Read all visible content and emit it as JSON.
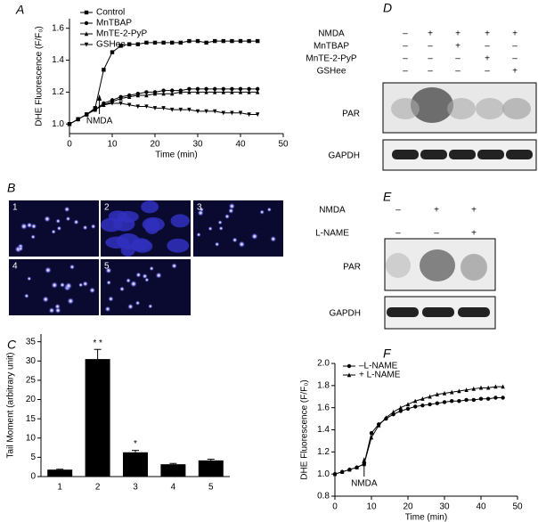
{
  "panel_labels": [
    "A",
    "B",
    "C",
    "D",
    "E",
    "F"
  ],
  "chart_data": [
    {
      "type": "line",
      "x_title": "Time (min)",
      "y_title": "DHE Fluorescence (F/F₀)",
      "annotation": "NMDA",
      "x": [
        0,
        2,
        4,
        6,
        8,
        10,
        12,
        14,
        16,
        18,
        20,
        22,
        24,
        26,
        28,
        30,
        32,
        34,
        36,
        38,
        40,
        42,
        44
      ],
      "series": [
        {
          "name": "Control",
          "color": "#000000",
          "marker": "square",
          "values": [
            1.0,
            1.03,
            1.06,
            1.1,
            1.34,
            1.45,
            1.49,
            1.5,
            1.5,
            1.51,
            1.51,
            1.51,
            1.51,
            1.51,
            1.52,
            1.52,
            1.51,
            1.52,
            1.52,
            1.52,
            1.52,
            1.52,
            1.52
          ]
        },
        {
          "name": "MnTBAP",
          "color": "#000000",
          "marker": "circle",
          "values": [
            1.0,
            1.03,
            1.06,
            1.09,
            1.13,
            1.15,
            1.17,
            1.18,
            1.19,
            1.2,
            1.2,
            1.21,
            1.21,
            1.21,
            1.22,
            1.22,
            1.22,
            1.22,
            1.22,
            1.22,
            1.22,
            1.22,
            1.22
          ]
        },
        {
          "name": "MnTE-2-PyP",
          "color": "#000000",
          "marker": "triangle-up",
          "values": [
            1.0,
            1.03,
            1.06,
            1.09,
            1.12,
            1.14,
            1.16,
            1.17,
            1.18,
            1.18,
            1.19,
            1.19,
            1.19,
            1.2,
            1.2,
            1.2,
            1.2,
            1.2,
            1.2,
            1.2,
            1.2,
            1.2,
            1.2
          ]
        },
        {
          "name": "GSHee",
          "color": "#000000",
          "marker": "triangle-down",
          "values": [
            1.0,
            1.03,
            1.06,
            1.09,
            1.12,
            1.13,
            1.13,
            1.12,
            1.11,
            1.11,
            1.1,
            1.1,
            1.09,
            1.09,
            1.09,
            1.08,
            1.08,
            1.08,
            1.07,
            1.07,
            1.07,
            1.06,
            1.06
          ]
        }
      ],
      "xlim": [
        0,
        50
      ],
      "xticks": [
        0,
        10,
        20,
        30,
        40,
        50
      ],
      "ylim": [
        0.94,
        1.66
      ],
      "yticks": [
        {
          "value": 1,
          "label": "1.0"
        },
        1.2,
        1.4,
        1.6
      ],
      "legend": "top-left"
    },
    {
      "type": "bar",
      "y_title": "Tail Moment (arbitrary unit)",
      "color": "#000000",
      "categories": [
        "1",
        "2",
        "3",
        "4",
        "5"
      ],
      "values": [
        1.8,
        30.5,
        6.3,
        3.2,
        4.2
      ],
      "errors": [
        0.1,
        2.5,
        0.5,
        0.2,
        0.3
      ],
      "significance": [
        null,
        "* *",
        "*",
        null,
        null
      ],
      "ylim": [
        0,
        37
      ],
      "yticks": [
        0,
        5,
        10,
        15,
        20,
        25,
        30,
        35
      ]
    },
    {
      "type": "line",
      "x_title": "Time (min)",
      "y_title": "DHE Fluorescence (F/F₀)",
      "annotation": "NMDA",
      "x": [
        0,
        2,
        4,
        6,
        8,
        10,
        12,
        14,
        16,
        18,
        20,
        22,
        24,
        26,
        28,
        30,
        32,
        34,
        36,
        38,
        40,
        42,
        44,
        46
      ],
      "series": [
        {
          "name": "–L-NAME",
          "color": "#000000",
          "marker": "circle",
          "values": [
            1.0,
            1.02,
            1.04,
            1.06,
            1.09,
            1.37,
            1.45,
            1.5,
            1.54,
            1.57,
            1.59,
            1.61,
            1.62,
            1.63,
            1.64,
            1.65,
            1.66,
            1.66,
            1.67,
            1.67,
            1.68,
            1.68,
            1.69,
            1.69
          ]
        },
        {
          "name": "+ L-NAME",
          "color": "#000000",
          "marker": "triangle-up",
          "values": [
            1.0,
            1.02,
            1.04,
            1.06,
            1.09,
            1.33,
            1.44,
            1.51,
            1.56,
            1.6,
            1.63,
            1.66,
            1.68,
            1.7,
            1.72,
            1.73,
            1.74,
            1.75,
            1.76,
            1.77,
            1.78,
            1.78,
            1.79,
            1.79
          ]
        }
      ],
      "xlim": [
        0,
        50
      ],
      "xticks": [
        0,
        10,
        20,
        30,
        40,
        50
      ],
      "ylim": [
        0.8,
        2.0
      ],
      "yticks": [
        0.8,
        {
          "value": 1,
          "label": "1.0"
        },
        1.2,
        1.4,
        1.6,
        1.8,
        {
          "value": 2,
          "label": "2.0"
        }
      ],
      "legend": "top-left"
    }
  ],
  "images": {
    "labels": [
      "1",
      "2",
      "3",
      "4",
      "5"
    ]
  },
  "blot_d": {
    "rows": [
      {
        "label": "NMDA",
        "marks": [
          "–",
          "+",
          "+",
          "+",
          "+"
        ]
      },
      {
        "label": "MnTBAP",
        "marks": [
          "–",
          "–",
          "+",
          "–",
          "–"
        ]
      },
      {
        "label": "MnTE-2-PyP",
        "marks": [
          "–",
          "–",
          "–",
          "+",
          "–"
        ]
      },
      {
        "label": "GSHee",
        "marks": [
          "–",
          "–",
          "–",
          "–",
          "+"
        ]
      }
    ],
    "bands": [
      "PAR",
      "GAPDH"
    ]
  },
  "blot_e": {
    "rows": [
      {
        "label": "NMDA",
        "marks": [
          "–",
          "+",
          "+"
        ]
      },
      {
        "label": "L-NAME",
        "marks": [
          "–",
          "–",
          "+"
        ]
      }
    ],
    "bands": [
      "PAR",
      "GAPDH"
    ]
  }
}
